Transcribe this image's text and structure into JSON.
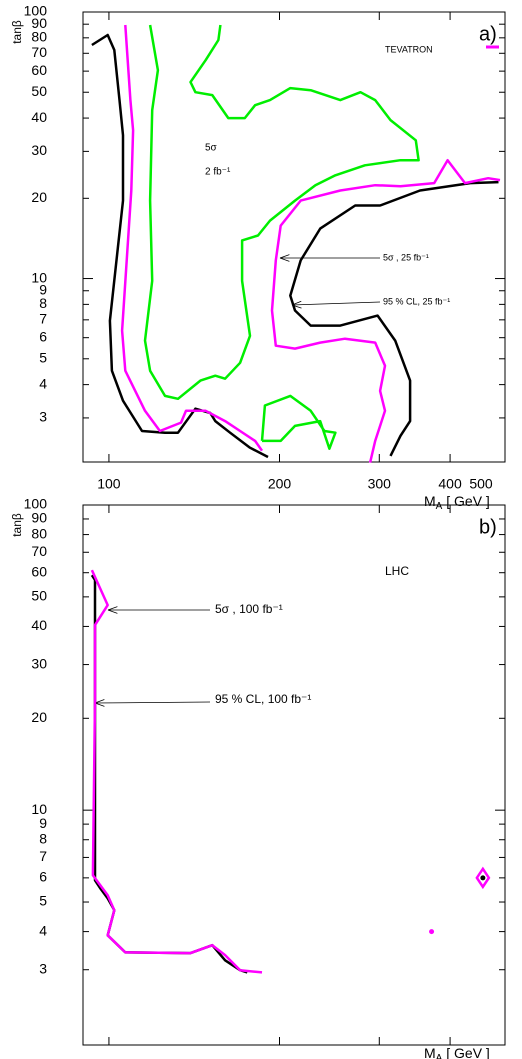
{
  "chart_data": [
    {
      "type": "line",
      "panel_label": "a)",
      "collider": "TEVATRON",
      "y_label": "tanβ",
      "x_label": {
        "main": "M",
        "sub": "A",
        "rest": " [ GeV ]"
      },
      "log_x": true,
      "log_y": true,
      "xlim": [
        90,
        500
      ],
      "ylim": [
        2.05,
        100
      ],
      "xticks": [
        100,
        200,
        300,
        400,
        500
      ],
      "yticks": [
        3,
        4,
        5,
        6,
        7,
        8,
        9,
        10,
        20,
        30,
        40,
        50,
        60,
        70,
        80,
        90,
        100
      ],
      "annotations": [
        "TEVATRON",
        "5σ",
        "2 fb⁻¹",
        "5σ , 25 fb⁻¹",
        "95 % CL, 25 fb⁻¹"
      ],
      "series": [
        {
          "color": "#000000",
          "x": [
            93.3,
            99.5,
            102.2,
            104.4,
            105.9,
            105.9,
            100.4,
            101.2,
            105.9,
            114.4,
            125.6,
            132.4,
            142.1,
            151,
            154.1,
            163.6,
            177.4,
            190.9
          ],
          "values": [
            75.2,
            82,
            72,
            46.7,
            34.5,
            19.6,
            6.95,
            4.51,
            3.48,
            2.68,
            2.64,
            2.64,
            3.25,
            3.13,
            2.92,
            2.64,
            2.32,
            2.14
          ]
        },
        {
          "color": "#000000",
          "x": [
            487,
            434,
            354,
            301,
            272,
            236,
            218,
            209,
            213,
            227,
            256,
            298,
            320,
            340,
            340,
            327,
            314
          ],
          "values": [
            23.0,
            22.8,
            21.4,
            18.8,
            18.8,
            15.4,
            11.7,
            8.63,
            7.59,
            6.66,
            6.66,
            7.26,
            5.85,
            4.14,
            2.92,
            2.57,
            2.16
          ]
        },
        {
          "color": "#ff00ff",
          "x": [
            106.9,
            109.1,
            110.3,
            109.5,
            105.5,
            106.9,
            115.8,
            123,
            134.0,
            136.8,
            148.2,
            160.3,
            170.4,
            181.1,
            186.3
          ],
          "values": [
            89.4,
            46.7,
            36.0,
            21.4,
            6.38,
            4.51,
            3.19,
            2.68,
            2.88,
            3.19,
            3.19,
            2.92,
            2.68,
            2.46,
            2.26
          ]
        },
        {
          "color": "#ff00ff",
          "x": [
            490,
            467,
            425,
            396,
            375,
            327,
            295,
            256,
            218,
            201,
            197,
            194,
            197,
            213,
            236,
            261,
            295,
            307,
            301,
            307,
            301,
            295,
            289
          ],
          "values": [
            23.4,
            23.8,
            22.8,
            27.8,
            22.8,
            22.2,
            22.4,
            21.4,
            19.6,
            15.8,
            11.7,
            7.59,
            5.6,
            5.46,
            5.75,
            5.95,
            5.75,
            4.71,
            3.79,
            3.19,
            2.8,
            2.46,
            2.04
          ]
        },
        {
          "color": "#00ee00",
          "x": [
            118.2,
            122.0,
            119.2,
            118.2,
            119.2,
            115.8,
            118.2,
            125.6,
            132.4,
            145.0,
            154.1,
            160.3,
            170.4,
            177.4,
            171.8,
            171.8,
            183.3,
            192.4,
            213,
            231.4,
            251,
            283,
            327,
            352,
            348,
            314,
            295,
            278,
            256,
            227,
            209,
            192.4,
            181.1,
            173.7,
            162.4,
            152.2,
            142.1,
            139.3,
            148.2,
            156,
            157.3
          ],
          "values": [
            89.4,
            60.5,
            42.8,
            19.6,
            9.8,
            5.85,
            4.51,
            3.63,
            3.54,
            4.14,
            4.32,
            4.21,
            4.83,
            6.1,
            9.8,
            13.9,
            14.5,
            16.5,
            19.6,
            22.4,
            24.4,
            26.6,
            27.8,
            27.8,
            33.0,
            39.3,
            46.7,
            50.0,
            46.7,
            50.9,
            51.8,
            46.7,
            44.7,
            40.0,
            40.0,
            48.8,
            50.0,
            54.6,
            66.0,
            78.5,
            89.4
          ]
        },
        {
          "color": "#00ee00",
          "x": [
            186.3,
            188.5,
            209,
            227,
            240,
            251,
            245,
            236,
            213,
            201,
            186.3
          ],
          "values": [
            2.46,
            3.34,
            3.63,
            3.19,
            2.68,
            2.64,
            2.3,
            2.92,
            2.8,
            2.46,
            2.46
          ]
        }
      ]
    },
    {
      "type": "line",
      "panel_label": "b)",
      "collider": "LHC",
      "y_label": "tanβ",
      "x_label": {
        "main": "M",
        "sub": "A",
        "rest": " [ GeV ]"
      },
      "log_x": true,
      "log_y": true,
      "xlim": [
        90,
        500
      ],
      "ylim": [
        1.7,
        100
      ],
      "xticks": [
        100,
        200,
        300,
        400,
        500
      ],
      "yticks": [
        3,
        4,
        5,
        6,
        7,
        8,
        9,
        10,
        20,
        30,
        40,
        50,
        60,
        70,
        80,
        90,
        100
      ],
      "annotations": [
        "LHC",
        "5σ , 100 fb⁻¹",
        "95 % CL, 100 fb⁻¹"
      ],
      "series": [
        {
          "color": "#000000",
          "x": [
            93.3,
            94.5,
            94.5,
            96.5,
            99.5,
            102.2,
            99.5,
            106.9,
            139.3,
            152.2,
            160.3,
            170.4,
            175.5
          ],
          "values": [
            58.9,
            56.8,
            5.89,
            5.55,
            5.14,
            4.7,
            3.89,
            3.42,
            3.4,
            3.61,
            3.22,
            2.99,
            2.94
          ]
        },
        {
          "color": "#ff00ff",
          "x": [
            93.3,
            99.5,
            94.5,
            94.5,
            93.7,
            96.5,
            99.5,
            102.2,
            99.5,
            106.9,
            139.3,
            152.2,
            160.3,
            170.4,
            186.3
          ],
          "values": [
            61.2,
            47.0,
            40.4,
            23.0,
            6.12,
            5.68,
            5.26,
            4.7,
            3.89,
            3.42,
            3.4,
            3.61,
            3.35,
            2.99,
            2.94
          ]
        },
        {
          "color": "#ff00ff",
          "marker": "dot",
          "x": [
            371
          ],
          "values": [
            4
          ]
        },
        {
          "color": "#ff00ff",
          "marker": "diamond",
          "x": [
            457
          ],
          "values": [
            6
          ]
        },
        {
          "color": "#000000",
          "marker": "dot",
          "x": [
            457
          ],
          "values": [
            6
          ]
        }
      ]
    }
  ]
}
